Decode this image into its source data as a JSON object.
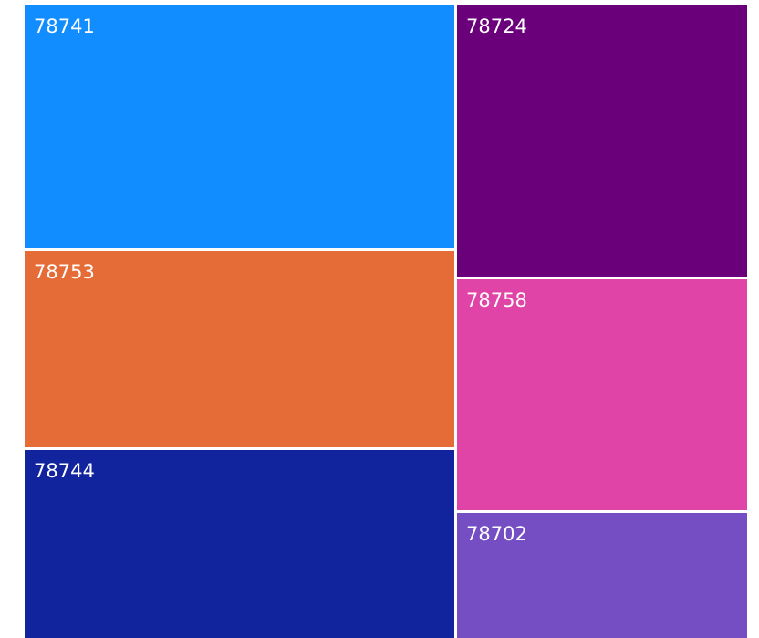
{
  "chart_data": {
    "type": "treemap",
    "colors_note": "each tile color as shown",
    "items": [
      {
        "label": "78741",
        "color": "#118DFF",
        "value": 100
      },
      {
        "label": "78753",
        "color": "#E66C37",
        "value": 81
      },
      {
        "label": "78744",
        "color": "#12239E",
        "value": 77
      },
      {
        "label": "78724",
        "color": "#6B007B",
        "value": 75
      },
      {
        "label": "78758",
        "color": "#E044A7",
        "value": 64
      },
      {
        "label": "78702",
        "color": "#744EC2",
        "value": 34
      }
    ]
  }
}
